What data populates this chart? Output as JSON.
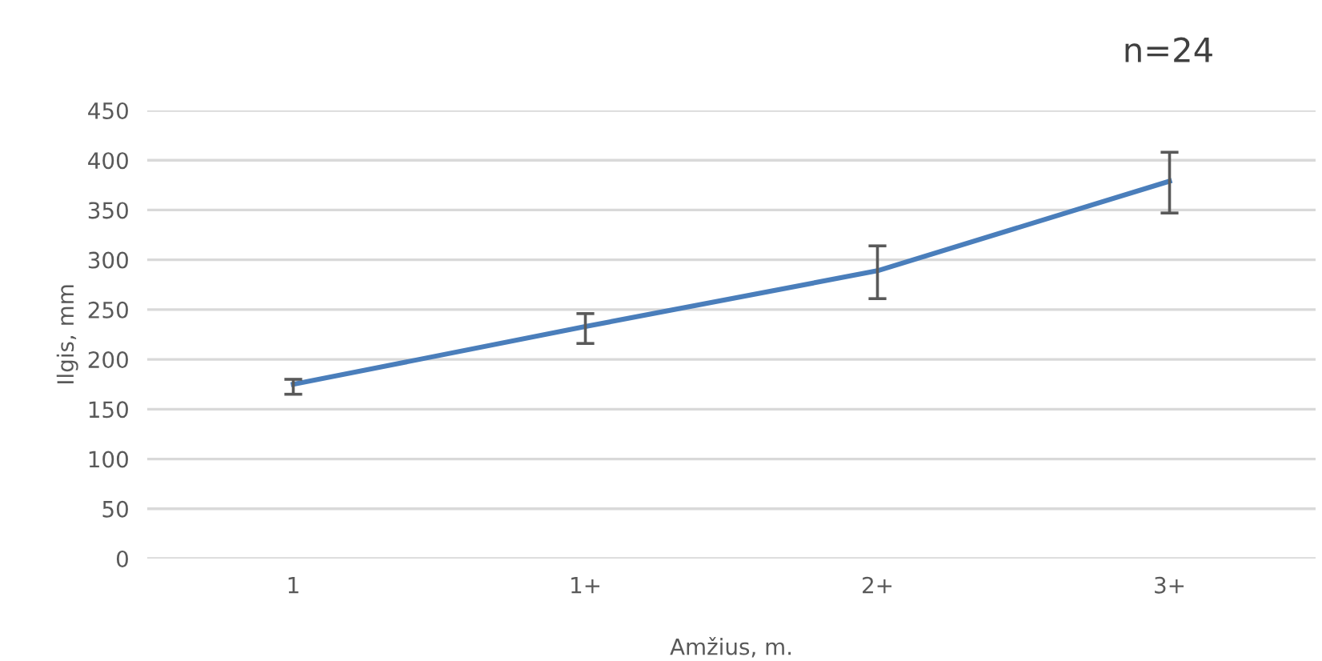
{
  "chart_data": {
    "type": "line",
    "categories": [
      "1",
      "1+",
      "2+",
      "3+"
    ],
    "series": [
      {
        "color": "#4a7ebb",
        "values": [
          175,
          233,
          289,
          379
        ],
        "errors": [
          [
            165,
            180
          ],
          [
            216,
            246
          ],
          [
            261,
            314
          ],
          [
            347,
            408
          ]
        ]
      }
    ],
    "ylim": [
      0,
      450
    ],
    "yticks": [
      0,
      50,
      100,
      150,
      200,
      250,
      300,
      350,
      400,
      450
    ],
    "ylabel": "Ilgis, mm",
    "xlabel": "Amžius, m.",
    "annotations": [
      "n=24"
    ],
    "grid": "y",
    "legend": false,
    "marker": "none",
    "line_style": "solid"
  }
}
